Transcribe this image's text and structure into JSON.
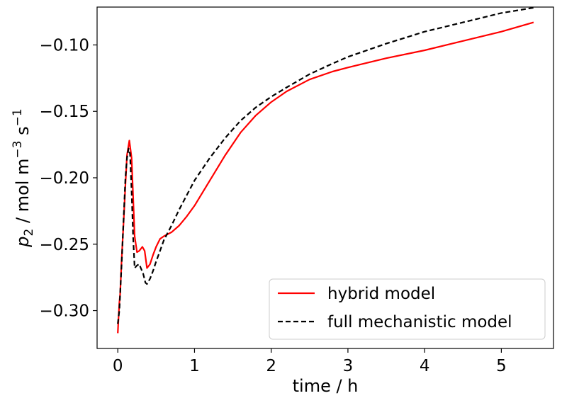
{
  "chart_data": {
    "type": "line",
    "title": "",
    "xlabel": "time / h",
    "ylabel": {
      "symbol": "p",
      "subscript": "2",
      "units": " / mol m",
      "exp1": "−3",
      "mid": " s",
      "exp2": "−1"
    },
    "xlim": [
      -0.27,
      5.68
    ],
    "ylim": [
      -0.3285,
      -0.0715
    ],
    "xticks": [
      0,
      1,
      2,
      3,
      4,
      5
    ],
    "xtick_labels": [
      "0",
      "1",
      "2",
      "3",
      "4",
      "5"
    ],
    "yticks": [
      -0.3,
      -0.25,
      -0.2,
      -0.15,
      -0.1
    ],
    "ytick_labels": [
      "−0.30",
      "−0.25",
      "−0.20",
      "−0.15",
      "−0.10"
    ],
    "grid": false,
    "legend_position": "lower-right",
    "series": [
      {
        "name": "hybrid model",
        "color": "#ff0000",
        "style": "solid",
        "x": [
          0,
          0.01,
          0.02,
          0.03,
          0.05,
          0.08,
          0.1,
          0.12,
          0.15,
          0.18,
          0.2,
          0.22,
          0.25,
          0.28,
          0.32,
          0.35,
          0.38,
          0.42,
          0.46,
          0.5,
          0.55,
          0.6,
          0.7,
          0.8,
          0.9,
          1.0,
          1.2,
          1.4,
          1.6,
          1.8,
          2.0,
          2.2,
          2.5,
          2.8,
          3.0,
          3.5,
          4.0,
          4.5,
          5.0,
          5.42
        ],
        "y": [
          -0.317,
          -0.305,
          -0.294,
          -0.288,
          -0.262,
          -0.228,
          -0.205,
          -0.183,
          -0.172,
          -0.185,
          -0.215,
          -0.244,
          -0.256,
          -0.255,
          -0.252,
          -0.255,
          -0.268,
          -0.265,
          -0.258,
          -0.252,
          -0.246,
          -0.244,
          -0.241,
          -0.236,
          -0.229,
          -0.221,
          -0.202,
          -0.183,
          -0.166,
          -0.153,
          -0.143,
          -0.135,
          -0.126,
          -0.12,
          -0.117,
          -0.11,
          -0.104,
          -0.097,
          -0.09,
          -0.083
        ]
      },
      {
        "name": "full mechanistic model",
        "color": "#000000",
        "style": "dashed",
        "x": [
          0,
          0.02,
          0.05,
          0.08,
          0.1,
          0.12,
          0.14,
          0.16,
          0.18,
          0.2,
          0.22,
          0.25,
          0.28,
          0.3,
          0.33,
          0.36,
          0.38,
          0.42,
          0.46,
          0.5,
          0.55,
          0.6,
          0.7,
          0.8,
          0.9,
          1.0,
          1.2,
          1.4,
          1.6,
          1.8,
          2.0,
          2.2,
          2.5,
          2.8,
          3.0,
          3.5,
          4.0,
          4.5,
          5.0,
          5.42
        ],
        "y": [
          -0.31,
          -0.3,
          -0.265,
          -0.225,
          -0.2,
          -0.185,
          -0.178,
          -0.182,
          -0.21,
          -0.245,
          -0.268,
          -0.266,
          -0.265,
          -0.268,
          -0.272,
          -0.279,
          -0.28,
          -0.276,
          -0.27,
          -0.263,
          -0.255,
          -0.247,
          -0.236,
          -0.224,
          -0.213,
          -0.202,
          -0.185,
          -0.17,
          -0.157,
          -0.147,
          -0.139,
          -0.132,
          -0.122,
          -0.114,
          -0.109,
          -0.099,
          -0.09,
          -0.083,
          -0.076,
          -0.072
        ]
      }
    ]
  }
}
